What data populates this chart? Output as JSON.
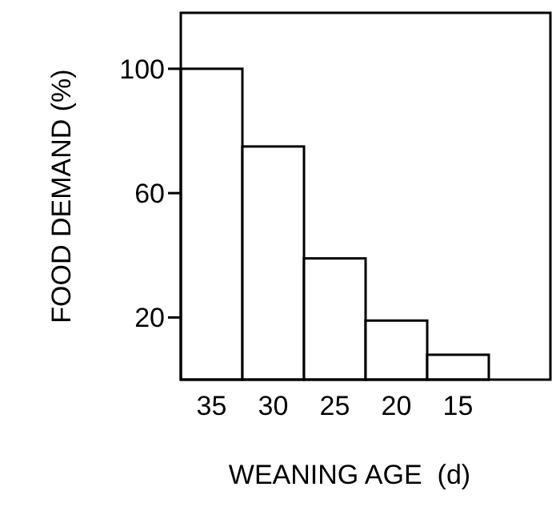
{
  "chart_data": {
    "type": "bar",
    "xlabel": "WEANING AGE  (d)",
    "ylabel": "FOOD DEMAND (%)",
    "categories": [
      "35",
      "30",
      "25",
      "20",
      "15"
    ],
    "values": [
      100,
      75,
      39,
      19,
      8
    ],
    "color": "#ffffff",
    "ylim": [
      0,
      118
    ],
    "yticks": [
      20,
      60,
      100
    ],
    "grid": false
  }
}
